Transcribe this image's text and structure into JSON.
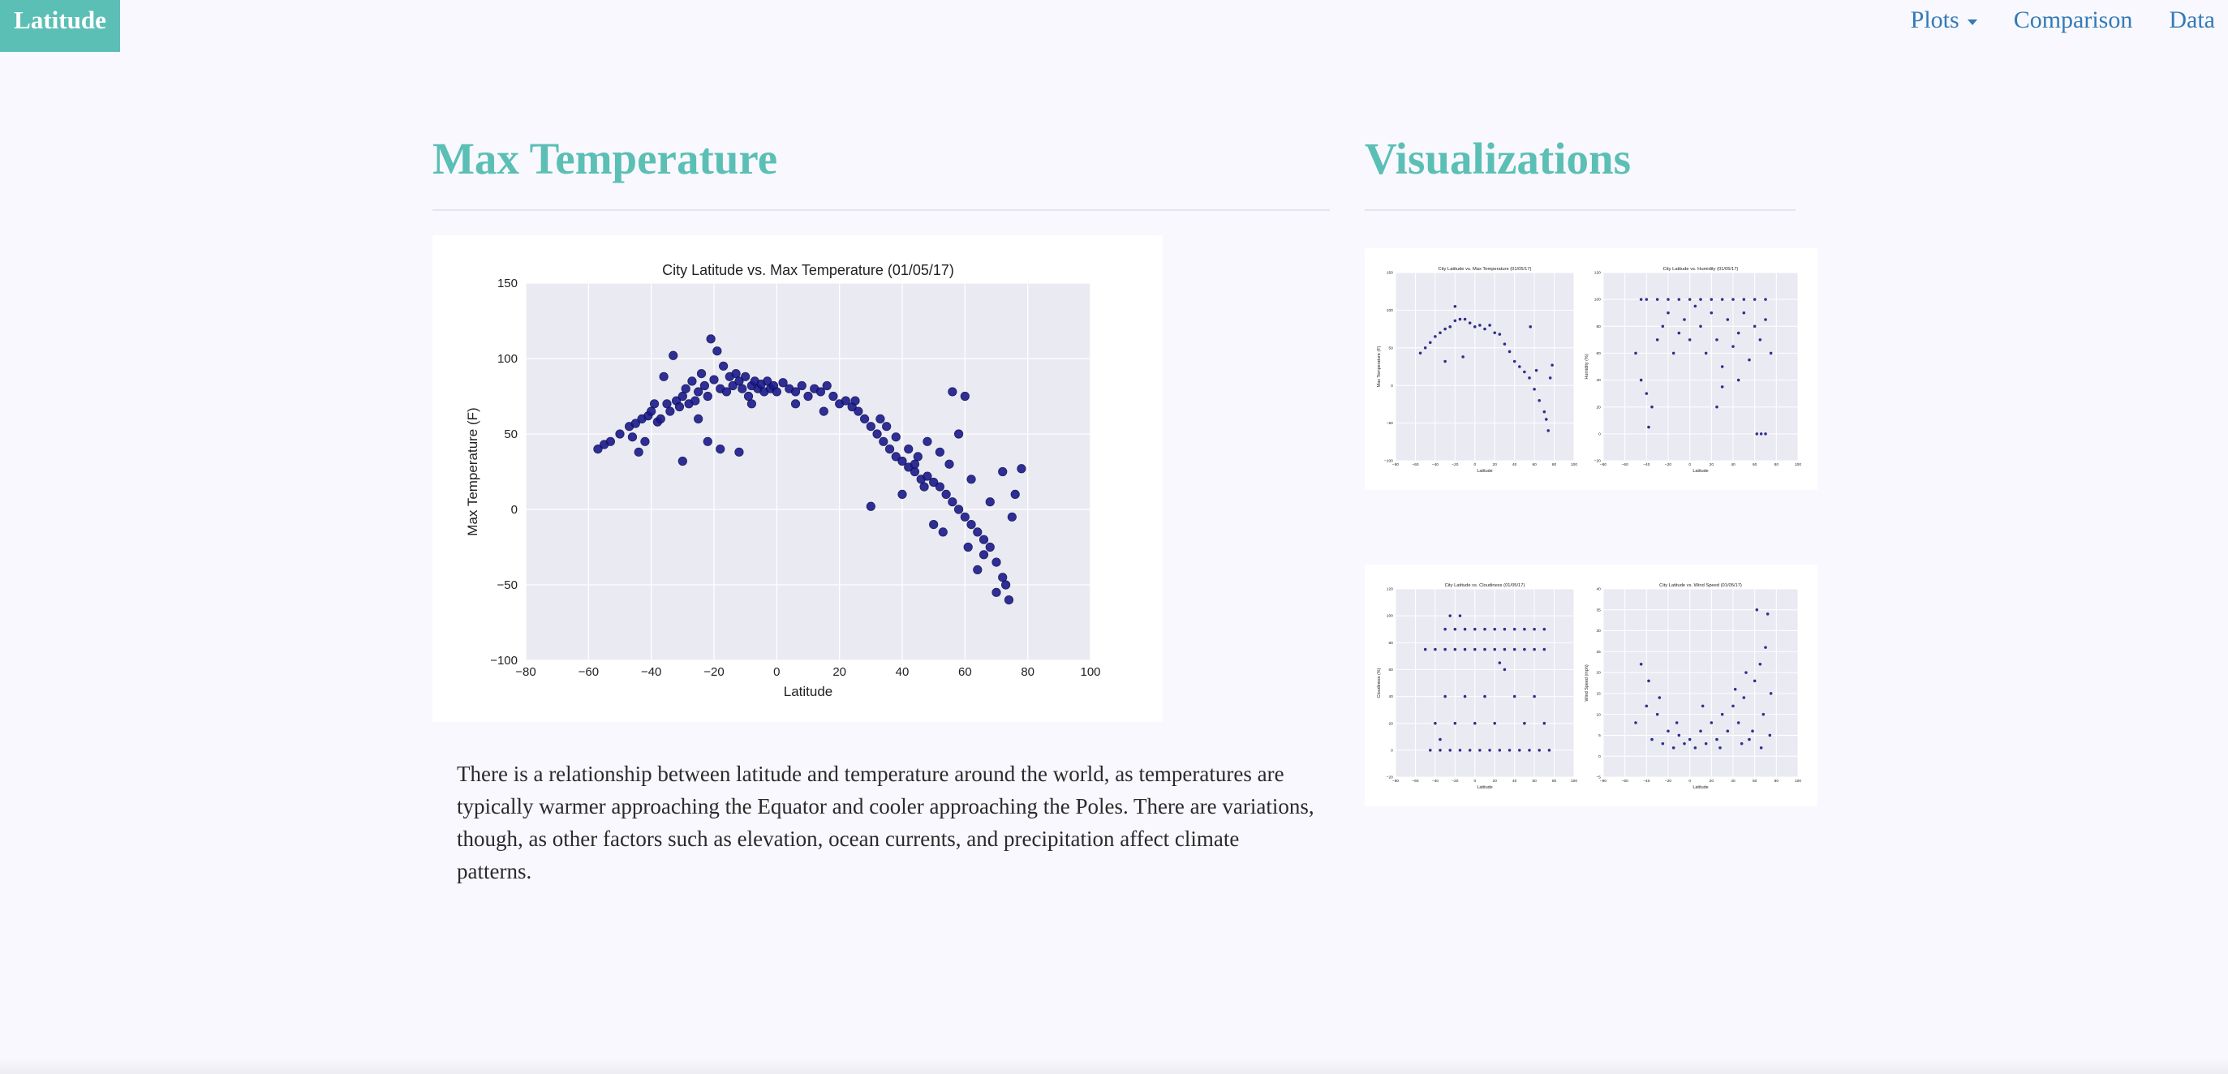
{
  "nav": {
    "brand": "Latitude",
    "items": [
      {
        "label": "Plots",
        "dropdown": true
      },
      {
        "label": "Comparison",
        "dropdown": false
      },
      {
        "label": "Data",
        "dropdown": false
      }
    ]
  },
  "colors": {
    "accent": "#5bbfb5",
    "link": "#337ab7",
    "marker": "#1a1a8c",
    "plot_bg": "#eaeaf2"
  },
  "main": {
    "title": "Max Temperature",
    "description": "There is a relationship between latitude and temperature around the world, as temperatures are typically warmer approaching the Equator and cooler approaching the Poles. There are variations, though, as other factors such as elevation, ocean currents, and precipitation affect climate patterns."
  },
  "sidebar": {
    "title": "Visualizations"
  },
  "chart_data": [
    {
      "type": "scatter",
      "title": "City Latitude vs. Max Temperature (01/05/17)",
      "xlabel": "Latitude",
      "ylabel": "Max Temperature (F)",
      "xlim": [
        -80,
        100
      ],
      "ylim": [
        -100,
        150
      ],
      "xticks": [
        -80,
        -60,
        -40,
        -20,
        0,
        20,
        40,
        60,
        80,
        100
      ],
      "yticks": [
        -100,
        -50,
        0,
        50,
        100,
        150
      ],
      "grid": true,
      "points": [
        [
          -57,
          40
        ],
        [
          -55,
          43
        ],
        [
          -53,
          45
        ],
        [
          -50,
          50
        ],
        [
          -47,
          55
        ],
        [
          -46,
          48
        ],
        [
          -45,
          57
        ],
        [
          -43,
          60
        ],
        [
          -42,
          45
        ],
        [
          -41,
          62
        ],
        [
          -40,
          65
        ],
        [
          -38,
          58
        ],
        [
          -37,
          60
        ],
        [
          -36,
          88
        ],
        [
          -35,
          70
        ],
        [
          -34,
          65
        ],
        [
          -33,
          102
        ],
        [
          -32,
          72
        ],
        [
          -31,
          68
        ],
        [
          -30,
          75
        ],
        [
          -30,
          32
        ],
        [
          -29,
          80
        ],
        [
          -28,
          70
        ],
        [
          -27,
          85
        ],
        [
          -26,
          72
        ],
        [
          -25,
          78
        ],
        [
          -24,
          90
        ],
        [
          -23,
          82
        ],
        [
          -22,
          75
        ],
        [
          -21,
          113
        ],
        [
          -20,
          86
        ],
        [
          -19,
          105
        ],
        [
          -18,
          80
        ],
        [
          -17,
          95
        ],
        [
          -16,
          78
        ],
        [
          -15,
          88
        ],
        [
          -14,
          82
        ],
        [
          -13,
          90
        ],
        [
          -12,
          85
        ],
        [
          -11,
          80
        ],
        [
          -10,
          88
        ],
        [
          -9,
          75
        ],
        [
          -8,
          82
        ],
        [
          -7,
          85
        ],
        [
          -6,
          80
        ],
        [
          -5,
          83
        ],
        [
          -4,
          78
        ],
        [
          -3,
          85
        ],
        [
          -2,
          80
        ],
        [
          -1,
          82
        ],
        [
          0,
          78
        ],
        [
          2,
          84
        ],
        [
          4,
          80
        ],
        [
          6,
          78
        ],
        [
          8,
          82
        ],
        [
          10,
          75
        ],
        [
          12,
          80
        ],
        [
          14,
          78
        ],
        [
          16,
          82
        ],
        [
          18,
          75
        ],
        [
          20,
          70
        ],
        [
          22,
          72
        ],
        [
          24,
          68
        ],
        [
          26,
          65
        ],
        [
          28,
          60
        ],
        [
          30,
          55
        ],
        [
          32,
          50
        ],
        [
          34,
          45
        ],
        [
          36,
          40
        ],
        [
          38,
          35
        ],
        [
          40,
          32
        ],
        [
          42,
          28
        ],
        [
          44,
          25
        ],
        [
          46,
          20
        ],
        [
          48,
          22
        ],
        [
          50,
          18
        ],
        [
          52,
          15
        ],
        [
          54,
          10
        ],
        [
          56,
          5
        ],
        [
          58,
          0
        ],
        [
          60,
          -5
        ],
        [
          62,
          -10
        ],
        [
          64,
          -15
        ],
        [
          66,
          -20
        ],
        [
          68,
          -25
        ],
        [
          70,
          -35
        ],
        [
          72,
          -45
        ],
        [
          73,
          -50
        ],
        [
          74,
          -60
        ],
        [
          76,
          10
        ],
        [
          78,
          27
        ],
        [
          56,
          78
        ],
        [
          60,
          75
        ],
        [
          -22,
          45
        ],
        [
          -18,
          40
        ],
        [
          -12,
          38
        ],
        [
          30,
          2
        ],
        [
          40,
          10
        ],
        [
          50,
          -10
        ],
        [
          64,
          -40
        ],
        [
          66,
          -30
        ],
        [
          70,
          -55
        ],
        [
          35,
          55
        ],
        [
          45,
          35
        ],
        [
          55,
          30
        ],
        [
          62,
          20
        ],
        [
          68,
          5
        ],
        [
          72,
          25
        ],
        [
          75,
          -5
        ],
        [
          58,
          50
        ],
        [
          52,
          38
        ],
        [
          48,
          45
        ],
        [
          44,
          30
        ],
        [
          38,
          48
        ],
        [
          -44,
          38
        ],
        [
          -39,
          70
        ],
        [
          -25,
          60
        ],
        [
          -8,
          70
        ],
        [
          6,
          70
        ],
        [
          15,
          65
        ],
        [
          25,
          72
        ],
        [
          33,
          60
        ],
        [
          42,
          40
        ],
        [
          47,
          15
        ],
        [
          53,
          -15
        ],
        [
          61,
          -25
        ]
      ]
    },
    {
      "type": "scatter",
      "title": "City Latitude vs. Max Temperature (01/05/17)",
      "xlabel": "Latitude",
      "ylabel": "Max Temperature (F)",
      "xlim": [
        -80,
        100
      ],
      "ylim": [
        -100,
        150
      ],
      "xticks": [
        -80,
        -60,
        -40,
        -20,
        0,
        20,
        40,
        60,
        80,
        100
      ],
      "yticks": [
        -100,
        -50,
        0,
        50,
        100,
        150
      ],
      "points": [
        [
          -55,
          43
        ],
        [
          -50,
          50
        ],
        [
          -45,
          57
        ],
        [
          -40,
          65
        ],
        [
          -35,
          70
        ],
        [
          -30,
          75
        ],
        [
          -25,
          78
        ],
        [
          -20,
          86
        ],
        [
          -15,
          88
        ],
        [
          -10,
          88
        ],
        [
          -5,
          83
        ],
        [
          0,
          78
        ],
        [
          5,
          80
        ],
        [
          10,
          75
        ],
        [
          15,
          80
        ],
        [
          20,
          70
        ],
        [
          25,
          68
        ],
        [
          30,
          55
        ],
        [
          35,
          45
        ],
        [
          40,
          32
        ],
        [
          45,
          25
        ],
        [
          50,
          18
        ],
        [
          55,
          10
        ],
        [
          60,
          -5
        ],
        [
          65,
          -20
        ],
        [
          70,
          -35
        ],
        [
          72,
          -45
        ],
        [
          74,
          -60
        ],
        [
          -30,
          32
        ],
        [
          -20,
          105
        ],
        [
          -12,
          38
        ],
        [
          56,
          78
        ],
        [
          62,
          20
        ],
        [
          76,
          10
        ],
        [
          78,
          27
        ]
      ]
    },
    {
      "type": "scatter",
      "title": "City Latitude vs. Humidity (01/05/17)",
      "xlabel": "Latitude",
      "ylabel": "Humidity (%)",
      "xlim": [
        -80,
        100
      ],
      "ylim": [
        -20,
        120
      ],
      "xticks": [
        -80,
        -60,
        -40,
        -20,
        0,
        20,
        40,
        60,
        80,
        100
      ],
      "yticks": [
        -20,
        0,
        20,
        40,
        60,
        80,
        100,
        120
      ],
      "points": [
        [
          -45,
          100
        ],
        [
          -40,
          100
        ],
        [
          -30,
          100
        ],
        [
          -20,
          100
        ],
        [
          -10,
          100
        ],
        [
          0,
          100
        ],
        [
          10,
          100
        ],
        [
          20,
          100
        ],
        [
          30,
          100
        ],
        [
          40,
          100
        ],
        [
          50,
          100
        ],
        [
          60,
          100
        ],
        [
          70,
          100
        ],
        [
          -50,
          60
        ],
        [
          -45,
          40
        ],
        [
          -40,
          30
        ],
        [
          -35,
          20
        ],
        [
          -30,
          70
        ],
        [
          -25,
          80
        ],
        [
          -20,
          90
        ],
        [
          -15,
          60
        ],
        [
          -10,
          75
        ],
        [
          -5,
          85
        ],
        [
          0,
          70
        ],
        [
          5,
          95
        ],
        [
          10,
          80
        ],
        [
          15,
          60
        ],
        [
          20,
          90
        ],
        [
          25,
          70
        ],
        [
          30,
          50
        ],
        [
          35,
          85
        ],
        [
          40,
          65
        ],
        [
          45,
          75
        ],
        [
          50,
          90
        ],
        [
          55,
          55
        ],
        [
          60,
          80
        ],
        [
          65,
          70
        ],
        [
          70,
          85
        ],
        [
          75,
          60
        ],
        [
          62,
          0
        ],
        [
          66,
          0
        ],
        [
          70,
          0
        ],
        [
          -38,
          5
        ],
        [
          25,
          20
        ],
        [
          30,
          35
        ],
        [
          45,
          40
        ]
      ]
    },
    {
      "type": "scatter",
      "title": "City Latitude vs. Cloudiness (01/05/17)",
      "xlabel": "Latitude",
      "ylabel": "Cloudiness (%)",
      "xlim": [
        -80,
        100
      ],
      "ylim": [
        -20,
        120
      ],
      "xticks": [
        -80,
        -60,
        -40,
        -20,
        0,
        20,
        40,
        60,
        80,
        100
      ],
      "yticks": [
        -20,
        0,
        20,
        40,
        60,
        80,
        100,
        120
      ],
      "points": [
        [
          -45,
          0
        ],
        [
          -35,
          0
        ],
        [
          -25,
          0
        ],
        [
          -15,
          0
        ],
        [
          -5,
          0
        ],
        [
          5,
          0
        ],
        [
          15,
          0
        ],
        [
          25,
          0
        ],
        [
          35,
          0
        ],
        [
          45,
          0
        ],
        [
          55,
          0
        ],
        [
          65,
          0
        ],
        [
          75,
          0
        ],
        [
          -50,
          75
        ],
        [
          -40,
          75
        ],
        [
          -30,
          75
        ],
        [
          -20,
          75
        ],
        [
          -10,
          75
        ],
        [
          0,
          75
        ],
        [
          10,
          75
        ],
        [
          20,
          75
        ],
        [
          30,
          75
        ],
        [
          40,
          75
        ],
        [
          50,
          75
        ],
        [
          60,
          75
        ],
        [
          70,
          75
        ],
        [
          -30,
          90
        ],
        [
          -20,
          90
        ],
        [
          -10,
          90
        ],
        [
          0,
          90
        ],
        [
          10,
          90
        ],
        [
          20,
          90
        ],
        [
          30,
          90
        ],
        [
          40,
          90
        ],
        [
          50,
          90
        ],
        [
          60,
          90
        ],
        [
          70,
          90
        ],
        [
          -40,
          20
        ],
        [
          -30,
          40
        ],
        [
          -20,
          20
        ],
        [
          -10,
          40
        ],
        [
          0,
          20
        ],
        [
          10,
          40
        ],
        [
          20,
          20
        ],
        [
          30,
          60
        ],
        [
          40,
          40
        ],
        [
          50,
          20
        ],
        [
          60,
          40
        ],
        [
          70,
          20
        ],
        [
          -25,
          100
        ],
        [
          -15,
          100
        ],
        [
          -35,
          8
        ],
        [
          25,
          65
        ]
      ]
    },
    {
      "type": "scatter",
      "title": "City Latitude vs. Wind Speed (01/05/17)",
      "xlabel": "Latitude",
      "ylabel": "Wind Speed (mph)",
      "xlim": [
        -80,
        100
      ],
      "ylim": [
        -5,
        40
      ],
      "xticks": [
        -80,
        -60,
        -40,
        -20,
        0,
        20,
        40,
        60,
        80,
        100
      ],
      "yticks": [
        -5,
        0,
        5,
        10,
        15,
        20,
        25,
        30,
        35,
        40
      ],
      "points": [
        [
          -50,
          8
        ],
        [
          -45,
          22
        ],
        [
          -40,
          12
        ],
        [
          -35,
          4
        ],
        [
          -30,
          10
        ],
        [
          -25,
          3
        ],
        [
          -20,
          6
        ],
        [
          -15,
          2
        ],
        [
          -10,
          5
        ],
        [
          -5,
          3
        ],
        [
          0,
          4
        ],
        [
          5,
          2
        ],
        [
          10,
          6
        ],
        [
          15,
          3
        ],
        [
          20,
          8
        ],
        [
          25,
          4
        ],
        [
          30,
          10
        ],
        [
          35,
          6
        ],
        [
          40,
          12
        ],
        [
          45,
          8
        ],
        [
          50,
          14
        ],
        [
          55,
          4
        ],
        [
          60,
          18
        ],
        [
          62,
          35
        ],
        [
          65,
          22
        ],
        [
          68,
          10
        ],
        [
          70,
          26
        ],
        [
          72,
          34
        ],
        [
          75,
          15
        ],
        [
          -38,
          18
        ],
        [
          -28,
          14
        ],
        [
          -12,
          8
        ],
        [
          12,
          12
        ],
        [
          28,
          2
        ],
        [
          42,
          16
        ],
        [
          52,
          20
        ],
        [
          58,
          6
        ],
        [
          66,
          2
        ],
        [
          74,
          5
        ],
        [
          48,
          3
        ]
      ]
    }
  ]
}
